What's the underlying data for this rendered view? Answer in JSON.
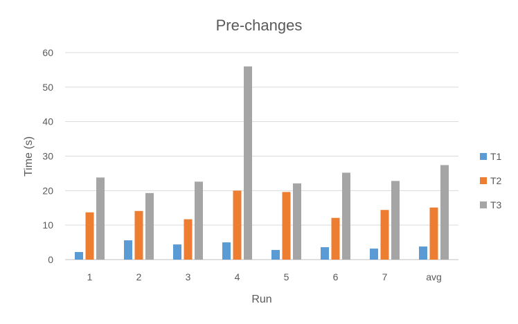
{
  "chart_data": {
    "type": "bar",
    "title": "Pre-changes",
    "xlabel": "Run",
    "ylabel": "Time (s)",
    "categories": [
      "1",
      "2",
      "3",
      "4",
      "5",
      "6",
      "7",
      "avg"
    ],
    "ylim": [
      0,
      60
    ],
    "yticks": [
      0,
      10,
      20,
      30,
      40,
      50,
      60
    ],
    "grid": true,
    "legend_position": "right",
    "series": [
      {
        "name": "T1",
        "color": "#5b9bd5",
        "values": [
          2.2,
          5.6,
          4.4,
          5.0,
          2.8,
          3.6,
          3.2,
          3.8
        ]
      },
      {
        "name": "T2",
        "color": "#ed7d31",
        "values": [
          13.7,
          14.1,
          11.7,
          20.0,
          19.6,
          12.1,
          14.4,
          15.1
        ]
      },
      {
        "name": "T3",
        "color": "#a5a5a5",
        "values": [
          23.8,
          19.3,
          22.6,
          56.0,
          22.1,
          25.2,
          22.8,
          27.4
        ]
      }
    ]
  }
}
